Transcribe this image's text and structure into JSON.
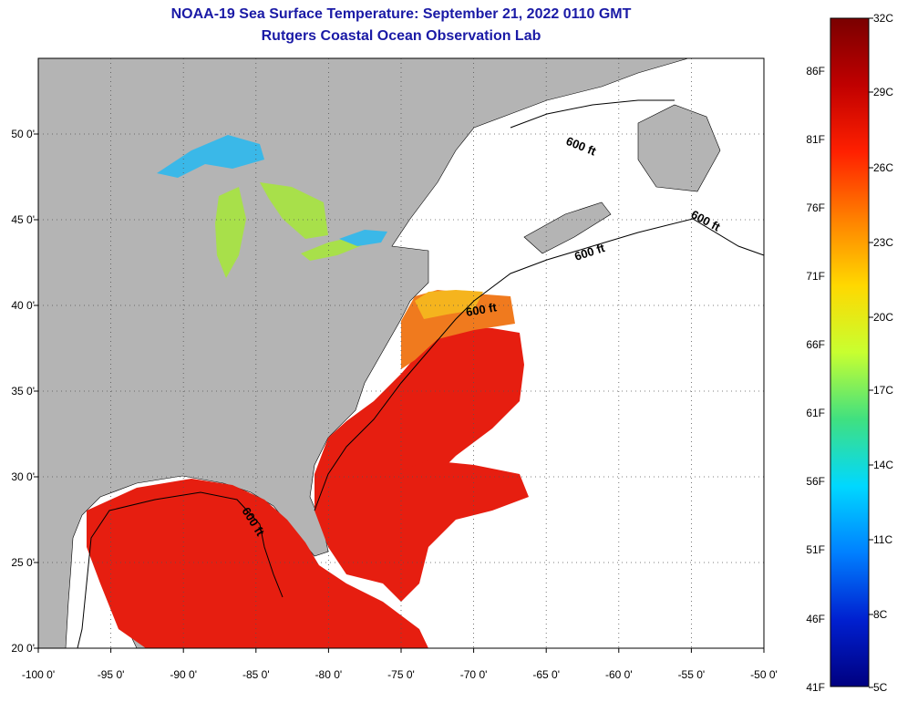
{
  "title_line1": "NOAA-19 Sea Surface Temperature:  September 21, 2022 0110 GMT",
  "title_line2": "Rutgers Coastal Ocean Observation Lab",
  "map": {
    "lon_ticks": [
      "-100 0'",
      "-95 0'",
      "-90 0'",
      "-85 0'",
      "-80 0'",
      "-75 0'",
      "-70 0'",
      "-65 0'",
      "-60 0'",
      "-55 0'",
      "-50 0'"
    ],
    "lat_ticks": [
      "50 0'",
      "45 0'",
      "40 0'",
      "35 0'",
      "30 0'",
      "25 0'",
      "20 0'"
    ],
    "contour_labels": [
      "600 ft",
      "600 ft",
      "600 ft",
      "600 ft",
      "600 ft"
    ],
    "colors": {
      "land": "#b4b4b4",
      "no_data": "#ffffff",
      "warm_water": "#e61e10",
      "orange_water": "#f07a1e",
      "yellow_water": "#f5b41e",
      "lake_green": "#a8e04a",
      "lake_cyan": "#3ab8e8"
    }
  },
  "colorbar": {
    "fahrenheit_labels": [
      "86F",
      "81F",
      "76F",
      "71F",
      "66F",
      "61F",
      "56F",
      "51F",
      "46F",
      "41F"
    ],
    "celsius_labels": [
      "32C",
      "29C",
      "26C",
      "23C",
      "20C",
      "17C",
      "14C",
      "11C",
      "8C",
      "5C"
    ],
    "gradient": [
      "#7a0000",
      "#c00000",
      "#ff2000",
      "#ff8000",
      "#ffd800",
      "#c8ff30",
      "#40e080",
      "#00d8ff",
      "#0080ff",
      "#0020d0",
      "#000080"
    ]
  }
}
